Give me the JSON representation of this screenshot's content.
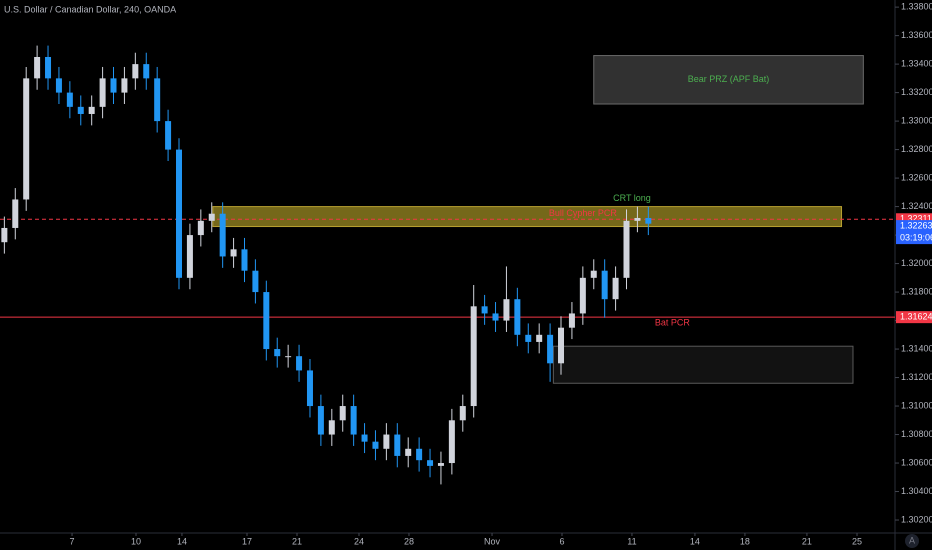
{
  "chart_data": {
    "type": "candlestick",
    "title": "U.S. Dollar / Canadian Dollar, 240, OANDA",
    "x": [
      0,
      1,
      2,
      3,
      4,
      5,
      6,
      7,
      8,
      9,
      10,
      11,
      12,
      13,
      14,
      15,
      16,
      17,
      18,
      19,
      20,
      21,
      22,
      23,
      24,
      25,
      26,
      27,
      28,
      29,
      30,
      31,
      32,
      33,
      34,
      35,
      36,
      37,
      38,
      39,
      40,
      41,
      42,
      43,
      44,
      45,
      46,
      47,
      48,
      49,
      50,
      51,
      52,
      53,
      54,
      55,
      56,
      57,
      58,
      59
    ],
    "open": [
      1.3215,
      1.3225,
      1.3245,
      1.333,
      1.3345,
      1.333,
      1.332,
      1.331,
      1.3305,
      1.331,
      1.333,
      1.332,
      1.333,
      1.334,
      1.333,
      1.33,
      1.328,
      1.319,
      1.322,
      1.323,
      1.3235,
      1.3205,
      1.321,
      1.3195,
      1.318,
      1.314,
      1.3135,
      1.3135,
      1.3125,
      1.31,
      1.308,
      1.309,
      1.31,
      1.308,
      1.3075,
      1.307,
      1.308,
      1.3065,
      1.307,
      1.3062,
      1.3058,
      1.306,
      1.309,
      1.31,
      1.317,
      1.3165,
      1.316,
      1.3175,
      1.315,
      1.3145,
      1.315,
      1.313,
      1.3155,
      1.3165,
      1.319,
      1.3195,
      1.3175,
      1.319,
      1.323,
      1.3232
    ],
    "high": [
      1.3233,
      1.3253,
      1.3338,
      1.3353,
      1.3353,
      1.3338,
      1.3328,
      1.3318,
      1.3318,
      1.3338,
      1.3338,
      1.3338,
      1.3348,
      1.3348,
      1.3338,
      1.3308,
      1.3288,
      1.3228,
      1.3238,
      1.3243,
      1.3243,
      1.3218,
      1.3218,
      1.3203,
      1.3188,
      1.3148,
      1.3143,
      1.3143,
      1.3133,
      1.3108,
      1.3098,
      1.3108,
      1.3108,
      1.3088,
      1.3083,
      1.3088,
      1.3088,
      1.3078,
      1.3078,
      1.307,
      1.3068,
      1.3098,
      1.3108,
      1.3185,
      1.3178,
      1.3173,
      1.3198,
      1.3183,
      1.3158,
      1.3158,
      1.3158,
      1.3163,
      1.3173,
      1.3198,
      1.3203,
      1.3203,
      1.3198,
      1.3238,
      1.324,
      1.324
    ],
    "low": [
      1.3207,
      1.3217,
      1.3237,
      1.3322,
      1.3322,
      1.3312,
      1.3302,
      1.3297,
      1.3297,
      1.3302,
      1.3312,
      1.3312,
      1.3322,
      1.3322,
      1.3292,
      1.3272,
      1.3182,
      1.3182,
      1.3212,
      1.3222,
      1.3197,
      1.3197,
      1.3187,
      1.3172,
      1.3132,
      1.3127,
      1.3127,
      1.3117,
      1.3092,
      1.3072,
      1.3072,
      1.3082,
      1.3072,
      1.3067,
      1.3062,
      1.3062,
      1.3057,
      1.3057,
      1.3054,
      1.305,
      1.3045,
      1.3052,
      1.3082,
      1.3092,
      1.3157,
      1.3152,
      1.3152,
      1.3142,
      1.3137,
      1.3137,
      1.3117,
      1.3122,
      1.3147,
      1.3157,
      1.3182,
      1.3162,
      1.3167,
      1.3182,
      1.3222,
      1.322
    ],
    "close": [
      1.3225,
      1.3245,
      1.333,
      1.3345,
      1.333,
      1.332,
      1.331,
      1.3305,
      1.331,
      1.333,
      1.332,
      1.333,
      1.334,
      1.333,
      1.33,
      1.328,
      1.319,
      1.322,
      1.323,
      1.3235,
      1.3205,
      1.321,
      1.3195,
      1.318,
      1.314,
      1.3135,
      1.3135,
      1.3125,
      1.31,
      1.308,
      1.309,
      1.31,
      1.308,
      1.3075,
      1.307,
      1.308,
      1.3065,
      1.307,
      1.3062,
      1.3058,
      1.306,
      1.309,
      1.31,
      1.317,
      1.3165,
      1.316,
      1.3175,
      1.315,
      1.3145,
      1.315,
      1.313,
      1.3155,
      1.3165,
      1.319,
      1.3195,
      1.3175,
      1.319,
      1.323,
      1.3232,
      1.3228
    ],
    "up_color": "#d1d4dc",
    "down_color": "#2196f3",
    "xlim": [
      -0.4,
      81.6
    ],
    "xticks": [
      {
        "value": 6.2,
        "label": "7"
      },
      {
        "value": 12.06,
        "label": "10"
      },
      {
        "value": 16.27,
        "label": "14"
      },
      {
        "value": 22.23,
        "label": "17"
      },
      {
        "value": 26.81,
        "label": "21"
      },
      {
        "value": 32.49,
        "label": "24"
      },
      {
        "value": 37.07,
        "label": "28"
      },
      {
        "value": 44.68,
        "label": "Nov"
      },
      {
        "value": 51.09,
        "label": "6"
      },
      {
        "value": 57.5,
        "label": "11"
      },
      {
        "value": 63.27,
        "label": "14"
      },
      {
        "value": 67.85,
        "label": "18"
      },
      {
        "value": 73.53,
        "label": "21"
      },
      {
        "value": 78.12,
        "label": "25"
      }
    ],
    "ylim": [
      1.3013,
      1.3385
    ],
    "yticks": [
      {
        "value": 1.302,
        "label": "1.30200"
      },
      {
        "value": 1.304,
        "label": "1.30400"
      },
      {
        "value": 1.306,
        "label": "1.30600"
      },
      {
        "value": 1.308,
        "label": "1.30800"
      },
      {
        "value": 1.31,
        "label": "1.31000"
      },
      {
        "value": 1.312,
        "label": "1.31200"
      },
      {
        "value": 1.314,
        "label": "1.31400"
      },
      {
        "value": 1.316,
        "label": "1.31600"
      },
      {
        "value": 1.318,
        "label": "1.31800"
      },
      {
        "value": 1.32,
        "label": "1.32000"
      },
      {
        "value": 1.322,
        "label": "1.32200"
      },
      {
        "value": 1.324,
        "label": "1.32400"
      },
      {
        "value": 1.326,
        "label": "1.32600"
      },
      {
        "value": 1.328,
        "label": "1.32800"
      },
      {
        "value": 1.33,
        "label": "1.33000"
      },
      {
        "value": 1.332,
        "label": "1.33200"
      },
      {
        "value": 1.334,
        "label": "1.33400"
      },
      {
        "value": 1.336,
        "label": "1.33600"
      },
      {
        "value": 1.338,
        "label": "1.33800"
      }
    ],
    "grid": false,
    "price_lines": [
      {
        "value": 1.32311,
        "label": "1.32311",
        "color": "#f23645",
        "style": "dashed"
      },
      {
        "value": 1.31624,
        "label": "1.31624",
        "color": "#f23645",
        "style": "solid"
      }
    ],
    "last_price": {
      "value": 1.32263,
      "label": "1.32263",
      "countdown": "03:19:06",
      "color": "#2962ff"
    },
    "zones": [
      {
        "x": [
          19.1,
          76.7
        ],
        "y": [
          1.3226,
          1.324
        ],
        "fill": "#8a7a1f",
        "stroke": "#b8a030"
      },
      {
        "x": [
          54.0,
          78.7
        ],
        "y": [
          1.3312,
          1.3346
        ],
        "fill": "#3a3a3a",
        "stroke": "#6a6a6a",
        "label": "Bear PRZ (APF Bat)",
        "label_color": "#4caf50"
      },
      {
        "x": [
          50.3,
          77.75
        ],
        "y": [
          1.3116,
          1.3142
        ],
        "fill": "#151515",
        "stroke": "#5a5a5a"
      }
    ],
    "annotations": [
      {
        "text": "CRT long",
        "color": "#4caf50"
      },
      {
        "text": "Bull Cypher PCR",
        "color": "#f23645"
      },
      {
        "text": "Bat PCR",
        "color": "#f23645"
      }
    ]
  }
}
